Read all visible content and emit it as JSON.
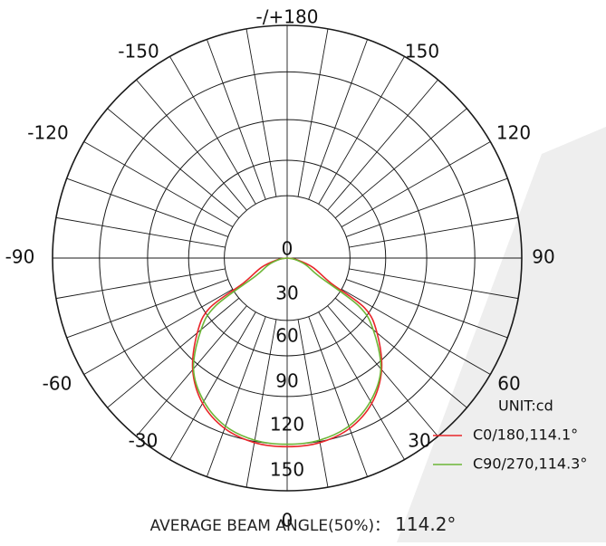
{
  "chart_data": {
    "type": "polar",
    "angle_labels": [
      {
        "angle": 180,
        "text": "-/+180"
      },
      {
        "angle": 150,
        "text": "150"
      },
      {
        "angle": 120,
        "text": "120"
      },
      {
        "angle": 90,
        "text": "90"
      },
      {
        "angle": 60,
        "text": "60"
      },
      {
        "angle": 30,
        "text": "30"
      },
      {
        "angle": 0,
        "text": "0"
      },
      {
        "angle": -30,
        "text": "-30"
      },
      {
        "angle": -60,
        "text": "-60"
      },
      {
        "angle": -90,
        "text": "-90"
      },
      {
        "angle": -120,
        "text": "-120"
      },
      {
        "angle": -150,
        "text": "-150"
      }
    ],
    "radial_ticks": [
      0,
      30,
      60,
      90,
      120,
      150
    ],
    "r_max": 190,
    "spoke_step_deg": 10,
    "unit_label": "UNIT:cd",
    "series": [
      {
        "name": "C0/180,114.1°",
        "color": "#e8262a",
        "points": [
          [
            -90,
            0
          ],
          [
            -80,
            8
          ],
          [
            -70,
            22
          ],
          [
            -60,
            41
          ],
          [
            -57,
            75
          ],
          [
            -50,
            95
          ],
          [
            -40,
            119
          ],
          [
            -30,
            137
          ],
          [
            -20,
            148
          ],
          [
            -10,
            153
          ],
          [
            0,
            154
          ],
          [
            10,
            153
          ],
          [
            20,
            148
          ],
          [
            30,
            137
          ],
          [
            40,
            119
          ],
          [
            50,
            95
          ],
          [
            57,
            75
          ],
          [
            60,
            41
          ],
          [
            70,
            22
          ],
          [
            80,
            8
          ],
          [
            90,
            0
          ]
        ]
      },
      {
        "name": "C90/270,114.3°",
        "color": "#6cb636",
        "points": [
          [
            -90,
            0
          ],
          [
            -80,
            6
          ],
          [
            -70,
            16
          ],
          [
            -60,
            30
          ],
          [
            -56,
            70
          ],
          [
            -50,
            91
          ],
          [
            -40,
            118
          ],
          [
            -30,
            135
          ],
          [
            -20,
            146
          ],
          [
            -10,
            151
          ],
          [
            0,
            152
          ],
          [
            10,
            151
          ],
          [
            20,
            146
          ],
          [
            30,
            135
          ],
          [
            40,
            118
          ],
          [
            50,
            91
          ],
          [
            56,
            70
          ],
          [
            60,
            30
          ],
          [
            70,
            16
          ],
          [
            80,
            6
          ],
          [
            90,
            0
          ]
        ]
      }
    ],
    "grid": true
  },
  "footer": {
    "label": "AVERAGE BEAM ANGLE(50%)：",
    "value": "114.2°"
  },
  "colors": {
    "grid": "#1a1a1a",
    "watermark": "#eeeeee"
  }
}
